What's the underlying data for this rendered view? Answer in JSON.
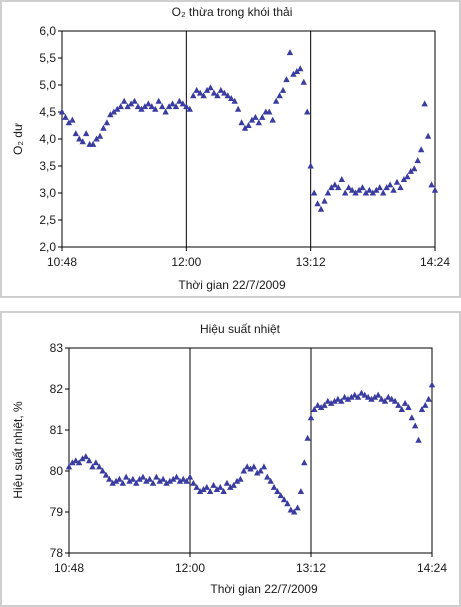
{
  "chart_data": [
    {
      "type": "scatter",
      "title": "O₂ thừa trong khói thải",
      "xlabel": "Thời gian 22/7/2009",
      "ylabel": "O₂ dư",
      "ylim": [
        2.0,
        6.0
      ],
      "yticks": [
        "2,0",
        "2,5",
        "3,0",
        "3,5",
        "4,0",
        "4,5",
        "5,0",
        "5,5",
        "6,0"
      ],
      "xlim": [
        "10:48",
        "14:24"
      ],
      "xticks": [
        "10:48",
        "12:00",
        "13:12",
        "14:24"
      ],
      "grid": "vertical at 12:00 and 13:12",
      "marker": "triangle",
      "color": "#3a3ca0",
      "series": [
        {
          "x": [
            "10:48",
            "10:50",
            "10:52",
            "10:54",
            "10:56",
            "10:58",
            "11:00",
            "11:02",
            "11:04",
            "11:06",
            "11:08",
            "11:10",
            "11:12",
            "11:14",
            "11:16",
            "11:18",
            "11:20",
            "11:22",
            "11:24",
            "11:26",
            "11:28",
            "11:30",
            "11:32",
            "11:34",
            "11:36",
            "11:38",
            "11:40",
            "11:42",
            "11:44",
            "11:46",
            "11:48",
            "11:50",
            "11:52",
            "11:54",
            "11:56",
            "11:58",
            "12:00",
            "12:02",
            "12:04",
            "12:06",
            "12:08",
            "12:10",
            "12:12",
            "12:14",
            "12:16",
            "12:18",
            "12:20",
            "12:22",
            "12:24",
            "12:26",
            "12:28",
            "12:30",
            "12:32",
            "12:34",
            "12:36",
            "12:38",
            "12:40",
            "12:42",
            "12:44",
            "12:46",
            "12:48",
            "12:50",
            "12:52",
            "12:54",
            "12:56",
            "12:58",
            "13:00",
            "13:02",
            "13:04",
            "13:06",
            "13:08",
            "13:10",
            "13:12",
            "13:14",
            "13:16",
            "13:18",
            "13:20",
            "13:22",
            "13:24",
            "13:26",
            "13:28",
            "13:30",
            "13:32",
            "13:34",
            "13:36",
            "13:38",
            "13:40",
            "13:42",
            "13:44",
            "13:46",
            "13:48",
            "13:50",
            "13:52",
            "13:54",
            "13:56",
            "13:58",
            "14:00",
            "14:02",
            "14:04",
            "14:06",
            "14:08",
            "14:10",
            "14:12",
            "14:14",
            "14:16",
            "14:18",
            "14:20",
            "14:22",
            "14:24"
          ],
          "y": [
            4.5,
            4.4,
            4.3,
            4.35,
            4.1,
            4.0,
            3.95,
            4.1,
            3.9,
            3.9,
            4.0,
            4.05,
            4.2,
            4.3,
            4.45,
            4.5,
            4.55,
            4.6,
            4.7,
            4.6,
            4.65,
            4.7,
            4.6,
            4.55,
            4.6,
            4.65,
            4.6,
            4.55,
            4.7,
            4.6,
            4.5,
            4.6,
            4.65,
            4.6,
            4.7,
            4.65,
            4.6,
            4.55,
            4.8,
            4.9,
            4.85,
            4.8,
            4.9,
            4.95,
            4.85,
            4.8,
            4.9,
            4.85,
            4.8,
            4.75,
            4.7,
            4.55,
            4.3,
            4.2,
            4.25,
            4.35,
            4.4,
            4.3,
            4.4,
            4.5,
            4.5,
            4.35,
            4.7,
            4.8,
            4.9,
            5.1,
            5.6,
            5.2,
            5.25,
            5.3,
            5.05,
            4.5,
            3.5,
            3.0,
            2.8,
            2.7,
            2.85,
            3.0,
            3.1,
            3.15,
            3.1,
            3.25,
            3.0,
            3.1,
            3.05,
            3.0,
            3.05,
            3.1,
            3.0,
            3.05,
            3.0,
            3.05,
            3.1,
            3.0,
            3.1,
            3.15,
            3.05,
            3.2,
            3.1,
            3.25,
            3.3,
            3.4,
            3.45,
            3.6,
            3.8,
            4.65,
            4.05,
            3.15,
            3.05
          ]
        }
      ]
    },
    {
      "type": "scatter",
      "title": "Hiệu suất nhiệt",
      "xlabel": "Thời gian 22/7/2009",
      "ylabel": "Hiệu suất nhiệt, %",
      "ylim": [
        78,
        83
      ],
      "yticks": [
        "78",
        "79",
        "80",
        "81",
        "82",
        "83"
      ],
      "xlim": [
        "10:48",
        "14:24"
      ],
      "xticks": [
        "10:48",
        "12:00",
        "13:12",
        "14:24"
      ],
      "grid": "vertical at 12:00 and 13:12",
      "marker": "triangle",
      "color": "#3a3ca0",
      "series": [
        {
          "x": [
            "10:48",
            "10:50",
            "10:52",
            "10:54",
            "10:56",
            "10:58",
            "11:00",
            "11:02",
            "11:04",
            "11:06",
            "11:08",
            "11:10",
            "11:12",
            "11:14",
            "11:16",
            "11:18",
            "11:20",
            "11:22",
            "11:24",
            "11:26",
            "11:28",
            "11:30",
            "11:32",
            "11:34",
            "11:36",
            "11:38",
            "11:40",
            "11:42",
            "11:44",
            "11:46",
            "11:48",
            "11:50",
            "11:52",
            "11:54",
            "11:56",
            "11:58",
            "12:00",
            "12:02",
            "12:04",
            "12:06",
            "12:08",
            "12:10",
            "12:12",
            "12:14",
            "12:16",
            "12:18",
            "12:20",
            "12:22",
            "12:24",
            "12:26",
            "12:28",
            "12:30",
            "12:32",
            "12:34",
            "12:36",
            "12:38",
            "12:40",
            "12:42",
            "12:44",
            "12:46",
            "12:48",
            "12:50",
            "12:52",
            "12:54",
            "12:56",
            "12:58",
            "13:00",
            "13:02",
            "13:04",
            "13:06",
            "13:08",
            "13:10",
            "13:12",
            "13:14",
            "13:16",
            "13:18",
            "13:20",
            "13:22",
            "13:24",
            "13:26",
            "13:28",
            "13:30",
            "13:32",
            "13:34",
            "13:36",
            "13:38",
            "13:40",
            "13:42",
            "13:44",
            "13:46",
            "13:48",
            "13:50",
            "13:52",
            "13:54",
            "13:56",
            "13:58",
            "14:00",
            "14:02",
            "14:04",
            "14:06",
            "14:08",
            "14:10",
            "14:12",
            "14:14",
            "14:16",
            "14:18",
            "14:20",
            "14:22",
            "14:24"
          ],
          "y": [
            80.1,
            80.2,
            80.25,
            80.2,
            80.3,
            80.35,
            80.25,
            80.1,
            80.2,
            80.1,
            80.0,
            79.9,
            79.8,
            79.7,
            79.75,
            79.8,
            79.7,
            79.85,
            79.75,
            79.8,
            79.7,
            79.8,
            79.85,
            79.75,
            79.8,
            79.7,
            79.85,
            79.75,
            79.8,
            79.7,
            79.75,
            79.8,
            79.85,
            79.75,
            79.8,
            79.75,
            79.85,
            79.7,
            79.6,
            79.5,
            79.55,
            79.6,
            79.5,
            79.65,
            79.55,
            79.6,
            79.5,
            79.7,
            79.6,
            79.65,
            79.75,
            79.8,
            80.0,
            80.1,
            80.05,
            80.1,
            79.95,
            80.0,
            80.1,
            79.85,
            79.75,
            79.6,
            79.5,
            79.4,
            79.3,
            79.2,
            79.05,
            79.0,
            79.1,
            79.5,
            80.2,
            80.8,
            81.3,
            81.5,
            81.6,
            81.55,
            81.6,
            81.7,
            81.65,
            81.7,
            81.75,
            81.7,
            81.8,
            81.75,
            81.8,
            81.85,
            81.8,
            81.9,
            81.85,
            81.8,
            81.75,
            81.8,
            81.85,
            81.75,
            81.7,
            81.8,
            81.75,
            81.7,
            81.6,
            81.5,
            81.65,
            81.55,
            81.3,
            81.1,
            80.75,
            81.5,
            81.6,
            81.75,
            82.1
          ]
        }
      ]
    }
  ]
}
